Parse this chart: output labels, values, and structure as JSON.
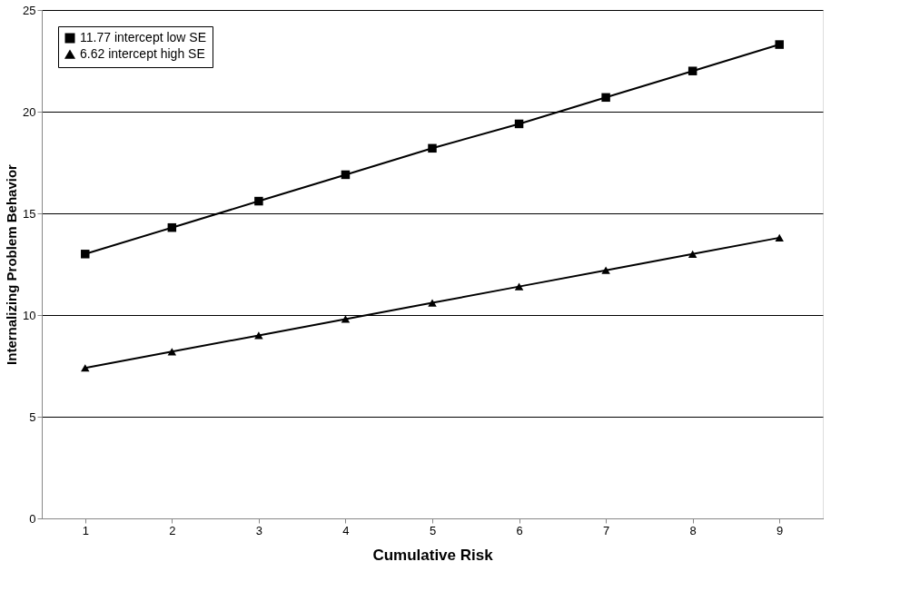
{
  "chart_data": {
    "type": "line",
    "xlabel": "Cumulative Risk",
    "ylabel": "Internalizing Problem Behavior",
    "categories": [
      "1",
      "2",
      "3",
      "4",
      "5",
      "6",
      "7",
      "8",
      "9"
    ],
    "series": [
      {
        "name": "11.77 intercept low SE",
        "color": "#000000",
        "marker": "square",
        "values": [
          13.0,
          14.3,
          15.6,
          16.9,
          18.2,
          19.4,
          20.7,
          22.0,
          23.3
        ]
      },
      {
        "name": "6.62 intercept high SE",
        "color": "#000000",
        "marker": "triangle",
        "values": [
          7.4,
          8.2,
          9.0,
          9.8,
          10.6,
          11.4,
          12.2,
          13.0,
          13.8
        ]
      }
    ],
    "ylim": [
      0,
      25
    ],
    "yticks": [
      0,
      5,
      10,
      15,
      20,
      25
    ],
    "grid": "y",
    "legend": "top left",
    "line_style": "solid"
  }
}
